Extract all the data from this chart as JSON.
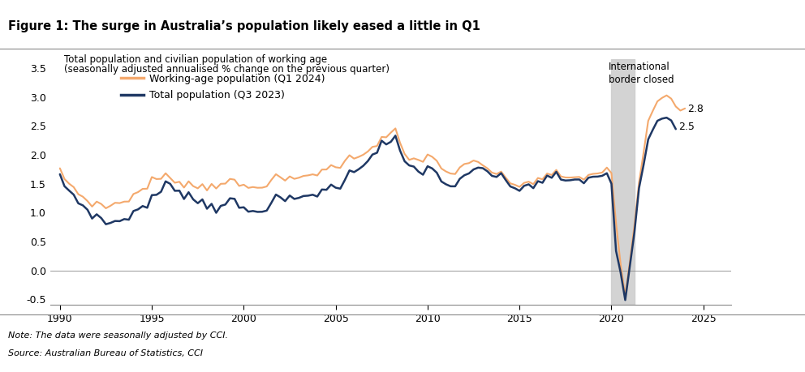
{
  "title": "Figure 1: The surge in Australia’s population likely eased a little in Q1",
  "title_bg_color": "#dce6f1",
  "subtitle_line1": "Total population and civilian population of working age",
  "subtitle_line2": "(seasonally adjusted annualised % change on the previous quarter)",
  "note": "Note: The data were seasonally adjusted by CCI.",
  "source": "Source: Australian Bureau of Statistics, CCI",
  "legend_working_age": "Working-age population (Q1 2024)",
  "legend_total_pop": "Total population (Q3 2023)",
  "annotation_border": "International\nborder closed",
  "annotation_working_age_val": "2.8",
  "annotation_total_val": "2.5",
  "color_working_age": "#f4a96d",
  "color_total": "#1f3864",
  "shaded_region_start": 2020.0,
  "shaded_region_end": 2021.25,
  "shaded_color": "#cccccc",
  "xlim": [
    1989.5,
    2026.5
  ],
  "ylim": [
    -0.6,
    3.65
  ],
  "yticks": [
    -0.5,
    0.0,
    0.5,
    1.0,
    1.5,
    2.0,
    2.5,
    3.0,
    3.5
  ],
  "xticks": [
    1990,
    1995,
    2000,
    2005,
    2010,
    2015,
    2020,
    2025
  ],
  "background_color": "#ffffff"
}
